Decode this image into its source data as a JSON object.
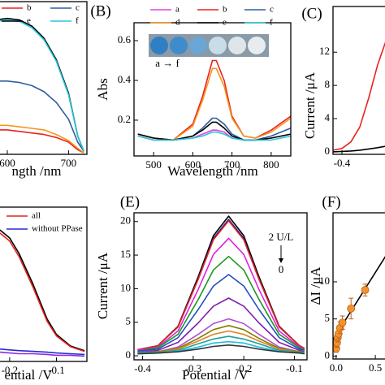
{
  "chart_data": [
    {
      "type": "line",
      "xlabel": "ngth /nm",
      "x": [
        540,
        560,
        580,
        600,
        620,
        640,
        660,
        680,
        700,
        715,
        725
      ],
      "xlim": [
        535,
        730
      ],
      "ylim": [
        0,
        1
      ],
      "xticks": [
        600,
        700
      ],
      "series": [
        {
          "name": "b",
          "color": "#e8231f",
          "values": [
            0.15,
            0.16,
            0.16,
            0.16,
            0.15,
            0.14,
            0.13,
            0.11,
            0.08,
            0.03,
            0.01
          ]
        },
        {
          "name": "c",
          "color": "#2d5fa0",
          "values": [
            0.45,
            0.47,
            0.48,
            0.48,
            0.47,
            0.45,
            0.41,
            0.34,
            0.23,
            0.08,
            0.02
          ]
        },
        {
          "color": "#f7941d",
          "values": [
            0.18,
            0.19,
            0.19,
            0.19,
            0.18,
            0.17,
            0.16,
            0.13,
            0.09,
            0.04,
            0.01
          ]
        },
        {
          "name": "e",
          "color": "#000000",
          "values": [
            0.8,
            0.85,
            0.88,
            0.89,
            0.88,
            0.84,
            0.76,
            0.62,
            0.4,
            0.12,
            0.02
          ]
        },
        {
          "name": "f",
          "color": "#26c6da",
          "values": [
            0.79,
            0.84,
            0.87,
            0.88,
            0.87,
            0.83,
            0.75,
            0.61,
            0.39,
            0.12,
            0.02
          ]
        }
      ]
    },
    {
      "type": "line",
      "panel_label": "(B)",
      "xlabel": "Wavelength /nm",
      "ylabel": "Abs",
      "annotations": [
        "a → f"
      ],
      "x": [
        460,
        500,
        550,
        600,
        625,
        650,
        660,
        680,
        700,
        730,
        760,
        800,
        850
      ],
      "xlim": [
        450,
        850
      ],
      "ylim": [
        0.02,
        0.69
      ],
      "xticks": [
        500,
        600,
        700,
        800
      ],
      "yticks": [
        0.2,
        0.4,
        0.6
      ],
      "series": [
        {
          "name": "a",
          "color": "#e040e0",
          "values": [
            0.12,
            0.1,
            0.1,
            0.11,
            0.13,
            0.15,
            0.15,
            0.14,
            0.11,
            0.1,
            0.1,
            0.11,
            0.13
          ]
        },
        {
          "name": "b",
          "color": "#e8231f",
          "values": [
            0.13,
            0.11,
            0.1,
            0.18,
            0.32,
            0.5,
            0.5,
            0.4,
            0.22,
            0.12,
            0.11,
            0.15,
            0.22
          ]
        },
        {
          "name": "c",
          "color": "#2d5fa0",
          "values": [
            0.13,
            0.11,
            0.1,
            0.12,
            0.16,
            0.21,
            0.21,
            0.18,
            0.13,
            0.1,
            0.1,
            0.12,
            0.16
          ]
        },
        {
          "name": "d",
          "color": "#f7941d",
          "values": [
            0.13,
            0.11,
            0.1,
            0.17,
            0.3,
            0.46,
            0.46,
            0.37,
            0.21,
            0.12,
            0.11,
            0.14,
            0.21
          ]
        },
        {
          "name": "e",
          "color": "#000000",
          "values": [
            0.13,
            0.11,
            0.1,
            0.12,
            0.15,
            0.19,
            0.19,
            0.16,
            0.12,
            0.1,
            0.1,
            0.11,
            0.13
          ]
        },
        {
          "name": "f",
          "color": "#26c6da",
          "values": [
            0.12,
            0.1,
            0.1,
            0.11,
            0.12,
            0.14,
            0.14,
            0.13,
            0.11,
            0.1,
            0.1,
            0.1,
            0.12
          ]
        }
      ]
    },
    {
      "type": "line",
      "panel_label": "(C)",
      "ylabel": "Current /μA",
      "x": [
        -0.42,
        -0.4,
        -0.38,
        -0.36,
        -0.34,
        -0.32,
        -0.3,
        -0.28
      ],
      "xlim": [
        -0.42,
        -0.22
      ],
      "ylim": [
        -0.3,
        17.5
      ],
      "xticks": [
        -0.4
      ],
      "yticks": [
        0,
        4,
        8,
        12
      ],
      "series": [
        {
          "color": "#e8231f",
          "values": [
            0.2,
            0.4,
            1.2,
            3.0,
            6.5,
            10.5,
            13.6,
            16
          ]
        },
        {
          "color": "#000000",
          "values": [
            0,
            0.05,
            0.1,
            0.2,
            0.35,
            0.5,
            0.7,
            1.0
          ]
        }
      ]
    },
    {
      "type": "line",
      "xlabel": "ential /V",
      "x": [
        -0.28,
        -0.25,
        -0.22,
        -0.2,
        -0.18,
        -0.15,
        -0.12,
        -0.1,
        -0.07,
        -0.04
      ],
      "xlim": [
        -0.29,
        -0.035
      ],
      "ylim": [
        0,
        20
      ],
      "xticks": [
        -0.2,
        -0.1
      ],
      "series": [
        {
          "color": "#000000",
          "values": [
            16.5,
            17.3,
            17.0,
            16.0,
            14.0,
            10.0,
            5.5,
            3.5,
            2.0,
            1.4
          ]
        },
        {
          "name": "all",
          "color": "#e8231f",
          "values": [
            16.0,
            16.8,
            16.6,
            15.6,
            13.6,
            9.6,
            5.2,
            3.3,
            1.9,
            1.3
          ]
        },
        {
          "name": "without PPase",
          "color": "#2a2ad0",
          "values": [
            1.6,
            1.6,
            1.6,
            1.5,
            1.4,
            1.3,
            1.2,
            1.1,
            1.0,
            0.9
          ]
        },
        {
          "color": "#8a2be2",
          "values": [
            1.2,
            1.2,
            1.2,
            1.1,
            1.0,
            1.0,
            0.9,
            0.8,
            0.8,
            0.7
          ]
        }
      ]
    },
    {
      "type": "line",
      "panel_label": "(E)",
      "xlabel": "Potential /V",
      "ylabel": "Current /μA",
      "annotations": [
        "2 U/L",
        "0"
      ],
      "x": [
        -0.41,
        -0.37,
        -0.33,
        -0.29,
        -0.26,
        -0.23,
        -0.2,
        -0.17,
        -0.13,
        -0.09,
        -0.08
      ],
      "xlim": [
        -0.417,
        -0.075
      ],
      "ylim": [
        -0.6,
        21.3
      ],
      "xticks": [
        -0.4,
        -0.3,
        -0.2,
        -0.1
      ],
      "yticks": [
        0,
        5,
        10,
        15,
        20
      ],
      "series": [
        {
          "color": "#000000",
          "values": [
            0.9,
            1.5,
            4.4,
            11.8,
            17.9,
            20.8,
            17.9,
            11.8,
            4.4,
            1.5,
            1.1
          ]
        },
        {
          "color": "#1a1aa6",
          "values": [
            0.9,
            1.5,
            4.3,
            11.5,
            17.5,
            20.3,
            17.5,
            11.5,
            4.3,
            1.5,
            1.1
          ]
        },
        {
          "color": "#e8231f",
          "values": [
            0.9,
            1.5,
            4.3,
            11.4,
            17.3,
            20.1,
            17.3,
            11.4,
            4.3,
            1.5,
            1.1
          ]
        },
        {
          "color": "#e020e0",
          "values": [
            0.8,
            1.3,
            3.7,
            9.9,
            15.1,
            17.5,
            15.1,
            9.9,
            3.7,
            1.3,
            1.0
          ]
        },
        {
          "color": "#1a9a1a",
          "values": [
            0.7,
            1.2,
            3.2,
            8.4,
            12.8,
            14.8,
            12.8,
            8.4,
            3.2,
            1.2,
            0.9
          ]
        },
        {
          "color": "#2050c0",
          "values": [
            0.7,
            1.0,
            2.7,
            6.9,
            10.4,
            12.1,
            10.4,
            6.9,
            2.7,
            1.0,
            0.8
          ]
        },
        {
          "color": "#8020b0",
          "values": [
            0.5,
            0.8,
            2.0,
            4.9,
            7.4,
            8.6,
            7.4,
            4.9,
            2.0,
            0.8,
            0.6
          ]
        },
        {
          "color": "#b050d0",
          "values": [
            0.5,
            0.6,
            1.3,
            3.2,
            4.8,
            5.5,
            4.8,
            3.2,
            1.3,
            0.6,
            0.5
          ]
        },
        {
          "color": "#808000",
          "values": [
            0.4,
            0.6,
            1.1,
            2.6,
            3.9,
            4.5,
            3.9,
            2.6,
            1.1,
            0.6,
            0.5
          ]
        },
        {
          "color": "#e08020",
          "values": [
            0.4,
            0.5,
            1.0,
            2.2,
            3.2,
            3.7,
            3.2,
            2.2,
            1.0,
            0.5,
            0.4
          ]
        },
        {
          "color": "#20a0a0",
          "values": [
            0.4,
            0.5,
            0.8,
            1.8,
            2.5,
            2.9,
            2.5,
            1.8,
            0.8,
            0.5,
            0.4
          ]
        },
        {
          "color": "#20c0e0",
          "values": [
            0.3,
            0.4,
            0.7,
            1.3,
            1.9,
            2.1,
            1.9,
            1.3,
            0.7,
            0.4,
            0.4
          ]
        },
        {
          "color": "#333333",
          "values": [
            0.3,
            0.4,
            0.6,
            1.0,
            1.4,
            1.6,
            1.4,
            1.0,
            0.6,
            0.4,
            0.3
          ]
        }
      ]
    },
    {
      "type": "scatter",
      "panel_label": "(F)",
      "ylabel": "ΔI /μA",
      "xlim": [
        -0.04,
        1.1
      ],
      "ylim": [
        -0.4,
        19.3
      ],
      "xticks": [
        {
          "value": 0,
          "label": "0.0"
        },
        0.5
      ],
      "yticks": [
        0,
        5,
        10
      ],
      "series": [
        {
          "type": "line",
          "color": "#000000",
          "x": [
            -0.04,
            0.64
          ],
          "values": [
            2.2,
            13.6
          ]
        },
        {
          "color": "#f5922a",
          "x": [
            0.0,
            0.01,
            0.02,
            0.03,
            0.05,
            0.08,
            0.19,
            0.37
          ],
          "values": [
            1.0,
            1.8,
            2.5,
            3.0,
            3.8,
            4.5,
            6.4,
            8.9
          ],
          "errors": [
            0.5,
            0.6,
            0.6,
            0.7,
            0.8,
            0.9,
            1.4,
            0.8
          ]
        }
      ]
    }
  ]
}
